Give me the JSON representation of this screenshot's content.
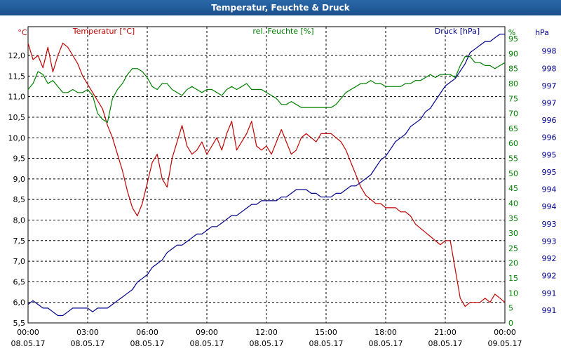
{
  "window": {
    "title": "Temperatur, Feuchte & Druck"
  },
  "chart_data": {
    "type": "line",
    "title": "Temperatur, Feuchte & Druck",
    "grid": true,
    "x": {
      "range": [
        0,
        24
      ],
      "ticks": [
        0,
        3,
        6,
        9,
        12,
        15,
        18,
        21,
        24
      ],
      "tick_labels": [
        "00:00",
        "03:00",
        "06:00",
        "09:00",
        "12:00",
        "15:00",
        "18:00",
        "21:00",
        "00:00"
      ],
      "tick_dates": [
        "08.05.17",
        "08.05.17",
        "08.05.17",
        "08.05.17",
        "08.05.17",
        "08.05.17",
        "08.05.17",
        "08.05.17",
        "09.05.17"
      ]
    },
    "axes": {
      "temperature": {
        "label": "Temperatur [°C]",
        "unit": "°C",
        "color": "#c00000",
        "range": [
          5.5,
          12.7
        ],
        "ticks": [
          "12,0",
          "11,5",
          "11,0",
          "10,5",
          "10,0",
          "9,5",
          "9,0",
          "8,5",
          "8,0",
          "7,5",
          "7,0",
          "6,5",
          "6,0",
          "5,5"
        ]
      },
      "humidity": {
        "label": "rel. Feuchte [%]",
        "unit": "%",
        "color": "#008000",
        "range": [
          0,
          99
        ],
        "ticks": [
          "95",
          "90",
          "85",
          "80",
          "75",
          "70",
          "65",
          "60",
          "55",
          "50",
          "45",
          "40",
          "35",
          "30",
          "25",
          "20",
          "15",
          "10",
          "5",
          "0"
        ]
      },
      "pressure": {
        "label": "Druck [hPa]",
        "unit": "hPa",
        "color": "#00008b",
        "range": [
          990.6,
          998.6
        ],
        "ticks": [
          "998",
          "998",
          "997",
          "997",
          "996",
          "996",
          "995",
          "995",
          "994",
          "994",
          "993",
          "993",
          "992",
          "992",
          "991",
          "991"
        ]
      }
    },
    "series": [
      {
        "name": "Temperatur",
        "axis": "temperature",
        "color": "#c00000",
        "x": [
          0,
          0.25,
          0.5,
          0.75,
          1.0,
          1.25,
          1.5,
          1.75,
          2.0,
          2.25,
          2.5,
          2.75,
          3.0,
          3.25,
          3.5,
          3.75,
          4.0,
          4.25,
          4.5,
          4.75,
          5.0,
          5.25,
          5.5,
          5.75,
          6.0,
          6.25,
          6.5,
          6.75,
          7.0,
          7.25,
          7.5,
          7.75,
          8.0,
          8.25,
          8.5,
          8.75,
          9.0,
          9.25,
          9.5,
          9.75,
          10.0,
          10.25,
          10.5,
          10.75,
          11.0,
          11.25,
          11.5,
          11.75,
          12.0,
          12.25,
          12.5,
          12.75,
          13.0,
          13.25,
          13.5,
          13.75,
          14.0,
          14.25,
          14.5,
          14.75,
          15.0,
          15.25,
          15.5,
          15.75,
          16.0,
          16.25,
          16.5,
          16.75,
          17.0,
          17.25,
          17.5,
          17.75,
          18.0,
          18.25,
          18.5,
          18.75,
          19.0,
          19.25,
          19.5,
          19.75,
          20.0,
          20.25,
          20.5,
          20.75,
          21.0,
          21.25,
          21.5,
          21.75,
          22.0,
          22.25,
          22.5,
          22.75,
          23.0,
          23.25,
          23.5,
          23.75,
          24.0
        ],
        "y": [
          12.3,
          11.9,
          12.0,
          11.7,
          12.2,
          11.6,
          12.0,
          12.3,
          12.2,
          12.0,
          11.8,
          11.5,
          11.3,
          11.1,
          10.9,
          10.7,
          10.3,
          10.0,
          9.6,
          9.2,
          8.7,
          8.3,
          8.1,
          8.4,
          8.9,
          9.4,
          9.6,
          9.0,
          8.8,
          9.5,
          9.9,
          10.3,
          9.8,
          9.6,
          9.7,
          9.9,
          9.6,
          9.8,
          10.0,
          9.7,
          10.1,
          10.4,
          9.7,
          9.9,
          10.1,
          10.4,
          9.8,
          9.7,
          9.8,
          9.6,
          9.9,
          10.2,
          9.9,
          9.6,
          9.7,
          10.0,
          10.1,
          10.0,
          9.9,
          10.1,
          10.1,
          10.1,
          10.0,
          9.9,
          9.7,
          9.4,
          9.1,
          8.8,
          8.6,
          8.5,
          8.4,
          8.4,
          8.3,
          8.3,
          8.3,
          8.2,
          8.2,
          8.1,
          7.9,
          7.8,
          7.7,
          7.6,
          7.5,
          7.4,
          7.5,
          7.5,
          6.8,
          6.1,
          5.9,
          6.0,
          6.0,
          6.0,
          6.1,
          6.0,
          6.2,
          6.1,
          6.0
        ]
      },
      {
        "name": "rel. Feuchte",
        "axis": "humidity",
        "color": "#008000",
        "x": [
          0,
          0.25,
          0.5,
          0.75,
          1.0,
          1.25,
          1.5,
          1.75,
          2.0,
          2.25,
          2.5,
          2.75,
          3.0,
          3.25,
          3.5,
          3.75,
          4.0,
          4.25,
          4.5,
          4.75,
          5.0,
          5.25,
          5.5,
          5.75,
          6.0,
          6.25,
          6.5,
          6.75,
          7.0,
          7.25,
          7.5,
          7.75,
          8.0,
          8.25,
          8.5,
          8.75,
          9.0,
          9.25,
          9.5,
          9.75,
          10.0,
          10.25,
          10.5,
          10.75,
          11.0,
          11.25,
          11.5,
          11.75,
          12.0,
          12.25,
          12.5,
          12.75,
          13.0,
          13.25,
          13.5,
          13.75,
          14.0,
          14.25,
          14.5,
          14.75,
          15.0,
          15.25,
          15.5,
          15.75,
          16.0,
          16.25,
          16.5,
          16.75,
          17.0,
          17.25,
          17.5,
          17.75,
          18.0,
          18.25,
          18.5,
          18.75,
          19.0,
          19.25,
          19.5,
          19.75,
          20.0,
          20.25,
          20.5,
          20.75,
          21.0,
          21.25,
          21.5,
          21.75,
          22.0,
          22.25,
          22.5,
          22.75,
          23.0,
          23.25,
          23.5,
          23.75,
          24.0
        ],
        "y": [
          78,
          80,
          84,
          83,
          80,
          81,
          79,
          77,
          77,
          78,
          77,
          77,
          78,
          76,
          70,
          68,
          67,
          75,
          78,
          80,
          83,
          85,
          85,
          84,
          82,
          79,
          78,
          80,
          80,
          78,
          77,
          76,
          78,
          79,
          78,
          77,
          78,
          78,
          77,
          76,
          78,
          79,
          78,
          79,
          80,
          78,
          78,
          78,
          77,
          76,
          75,
          73,
          73,
          74,
          73,
          72,
          72,
          72,
          72,
          72,
          72,
          72,
          73,
          75,
          77,
          78,
          79,
          80,
          80,
          81,
          80,
          80,
          79,
          79,
          79,
          79,
          80,
          80,
          81,
          81,
          82,
          83,
          82,
          83,
          83,
          83,
          82,
          86,
          89,
          89,
          87,
          87,
          86,
          86,
          85,
          86,
          87
        ]
      },
      {
        "name": "Druck",
        "axis": "pressure",
        "color": "#00008b",
        "x": [
          0,
          0.25,
          0.5,
          0.75,
          1.0,
          1.25,
          1.5,
          1.75,
          2.0,
          2.25,
          2.5,
          2.75,
          3.0,
          3.25,
          3.5,
          3.75,
          4.0,
          4.25,
          4.5,
          4.75,
          5.0,
          5.25,
          5.5,
          5.75,
          6.0,
          6.25,
          6.5,
          6.75,
          7.0,
          7.25,
          7.5,
          7.75,
          8.0,
          8.25,
          8.5,
          8.75,
          9.0,
          9.25,
          9.5,
          9.75,
          10.0,
          10.25,
          10.5,
          10.75,
          11.0,
          11.25,
          11.5,
          11.75,
          12.0,
          12.25,
          12.5,
          12.75,
          13.0,
          13.25,
          13.5,
          13.75,
          14.0,
          14.25,
          14.5,
          14.75,
          15.0,
          15.25,
          15.5,
          15.75,
          16.0,
          16.25,
          16.5,
          16.75,
          17.0,
          17.25,
          17.5,
          17.75,
          18.0,
          18.25,
          18.5,
          18.75,
          19.0,
          19.25,
          19.5,
          19.75,
          20.0,
          20.25,
          20.5,
          20.75,
          21.0,
          21.25,
          21.5,
          21.75,
          22.0,
          22.25,
          22.5,
          22.75,
          23.0,
          23.25,
          23.5,
          23.75,
          24.0
        ],
        "y": [
          991.1,
          991.2,
          991.1,
          991.0,
          991.0,
          990.9,
          990.8,
          990.8,
          990.9,
          991.0,
          991.0,
          991.0,
          991.0,
          990.9,
          991.0,
          991.0,
          991.0,
          991.1,
          991.2,
          991.3,
          991.4,
          991.5,
          991.7,
          991.8,
          991.9,
          992.1,
          992.2,
          992.3,
          992.5,
          992.6,
          992.7,
          992.7,
          992.8,
          992.9,
          993.0,
          993.0,
          993.1,
          993.2,
          993.2,
          993.3,
          993.4,
          993.5,
          993.5,
          993.6,
          993.7,
          993.8,
          993.8,
          993.9,
          993.9,
          993.9,
          993.9,
          994.0,
          994.0,
          994.1,
          994.2,
          994.2,
          994.2,
          994.1,
          994.1,
          994.0,
          994.0,
          994.0,
          994.1,
          994.1,
          994.2,
          994.3,
          994.3,
          994.4,
          994.5,
          994.6,
          994.8,
          995.0,
          995.1,
          995.3,
          995.5,
          995.6,
          995.7,
          995.9,
          996.0,
          996.1,
          996.3,
          996.4,
          996.6,
          996.8,
          997.0,
          997.1,
          997.2,
          997.4,
          997.6,
          997.9,
          998.0,
          998.1,
          998.2,
          998.2,
          998.3,
          998.4,
          998.4
        ]
      }
    ]
  }
}
